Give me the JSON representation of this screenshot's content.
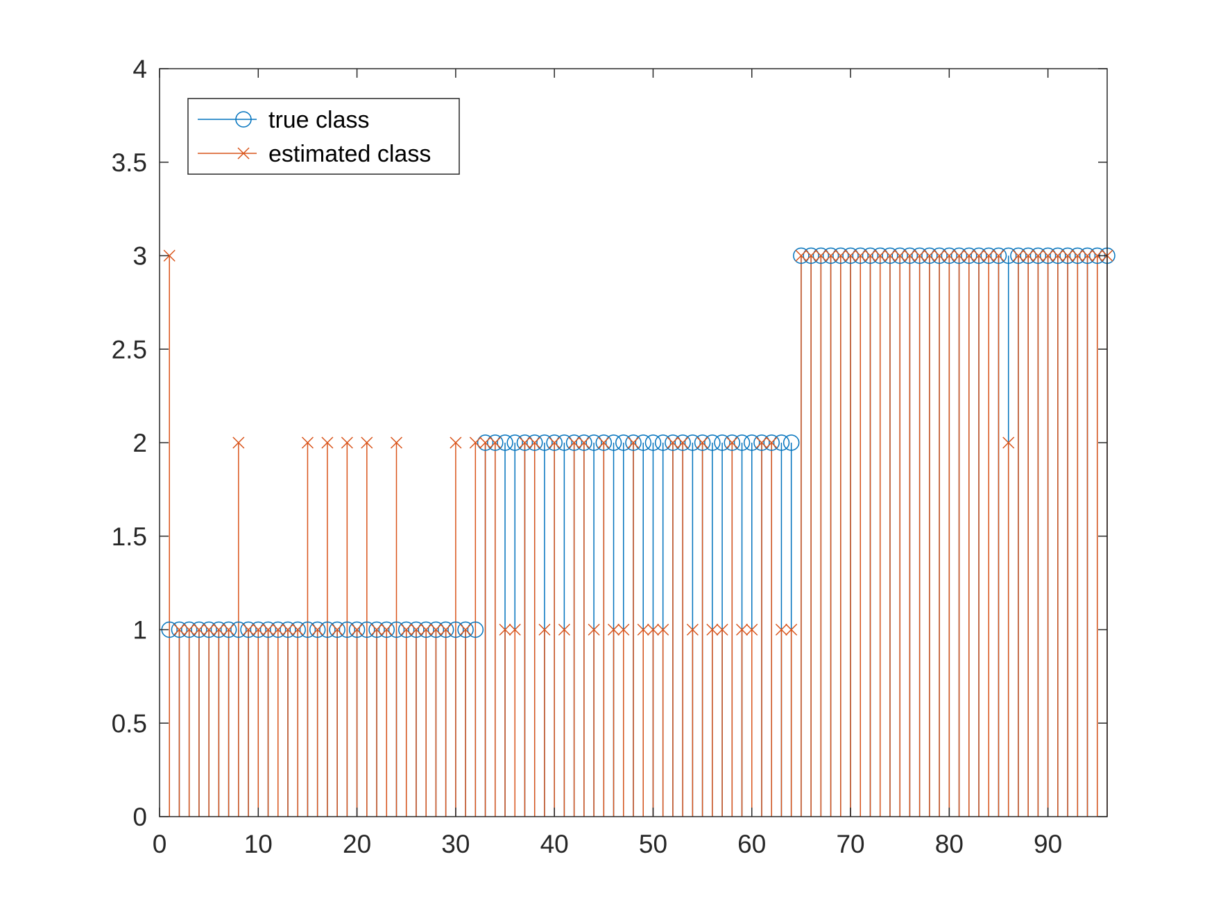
{
  "chart_data": {
    "type": "stem",
    "xlim": [
      0,
      96
    ],
    "ylim": [
      0,
      4
    ],
    "x_ticks": [
      0,
      10,
      20,
      30,
      40,
      50,
      60,
      70,
      80,
      90
    ],
    "x_tick_labels": [
      "0",
      "10",
      "20",
      "30",
      "40",
      "50",
      "60",
      "70",
      "80",
      "90"
    ],
    "y_ticks": [
      0,
      0.5,
      1,
      1.5,
      2,
      2.5,
      3,
      3.5,
      4
    ],
    "y_tick_labels": [
      "0",
      "0.5",
      "1",
      "1.5",
      "2",
      "2.5",
      "3",
      "3.5",
      "4"
    ],
    "grid": false,
    "legend_position": "top-left",
    "series": [
      {
        "name": "true class",
        "color": "#0072BD",
        "marker": "circle",
        "x": [
          1,
          2,
          3,
          4,
          5,
          6,
          7,
          8,
          9,
          10,
          11,
          12,
          13,
          14,
          15,
          16,
          17,
          18,
          19,
          20,
          21,
          22,
          23,
          24,
          25,
          26,
          27,
          28,
          29,
          30,
          31,
          32,
          33,
          34,
          35,
          36,
          37,
          38,
          39,
          40,
          41,
          42,
          43,
          44,
          45,
          46,
          47,
          48,
          49,
          50,
          51,
          52,
          53,
          54,
          55,
          56,
          57,
          58,
          59,
          60,
          61,
          62,
          63,
          64,
          65,
          66,
          67,
          68,
          69,
          70,
          71,
          72,
          73,
          74,
          75,
          76,
          77,
          78,
          79,
          80,
          81,
          82,
          83,
          84,
          85,
          86,
          87,
          88,
          89,
          90,
          91,
          92,
          93,
          94,
          95,
          96
        ],
        "values": [
          1,
          1,
          1,
          1,
          1,
          1,
          1,
          1,
          1,
          1,
          1,
          1,
          1,
          1,
          1,
          1,
          1,
          1,
          1,
          1,
          1,
          1,
          1,
          1,
          1,
          1,
          1,
          1,
          1,
          1,
          1,
          1,
          2,
          2,
          2,
          2,
          2,
          2,
          2,
          2,
          2,
          2,
          2,
          2,
          2,
          2,
          2,
          2,
          2,
          2,
          2,
          2,
          2,
          2,
          2,
          2,
          2,
          2,
          2,
          2,
          2,
          2,
          2,
          2,
          3,
          3,
          3,
          3,
          3,
          3,
          3,
          3,
          3,
          3,
          3,
          3,
          3,
          3,
          3,
          3,
          3,
          3,
          3,
          3,
          3,
          3,
          3,
          3,
          3,
          3,
          3,
          3,
          3,
          3,
          3,
          3
        ]
      },
      {
        "name": "estimated class",
        "color": "#D95319",
        "marker": "x",
        "x": [
          1,
          2,
          3,
          4,
          5,
          6,
          7,
          8,
          9,
          10,
          11,
          12,
          13,
          14,
          15,
          16,
          17,
          18,
          19,
          20,
          21,
          22,
          23,
          24,
          25,
          26,
          27,
          28,
          29,
          30,
          31,
          32,
          33,
          34,
          35,
          36,
          37,
          38,
          39,
          40,
          41,
          42,
          43,
          44,
          45,
          46,
          47,
          48,
          49,
          50,
          51,
          52,
          53,
          54,
          55,
          56,
          57,
          58,
          59,
          60,
          61,
          62,
          63,
          64,
          65,
          66,
          67,
          68,
          69,
          70,
          71,
          72,
          73,
          74,
          75,
          76,
          77,
          78,
          79,
          80,
          81,
          82,
          83,
          84,
          85,
          86,
          87,
          88,
          89,
          90,
          91,
          92,
          93,
          94,
          95,
          96
        ],
        "values": [
          3,
          1,
          1,
          1,
          1,
          1,
          1,
          2,
          1,
          1,
          1,
          1,
          1,
          1,
          2,
          1,
          2,
          1,
          2,
          1,
          2,
          1,
          1,
          2,
          1,
          1,
          1,
          1,
          1,
          2,
          1,
          2,
          2,
          2,
          1,
          1,
          2,
          2,
          1,
          2,
          1,
          2,
          2,
          1,
          2,
          1,
          1,
          2,
          1,
          1,
          1,
          2,
          2,
          1,
          2,
          1,
          1,
          2,
          1,
          1,
          2,
          2,
          1,
          1,
          3,
          3,
          3,
          3,
          3,
          3,
          3,
          3,
          3,
          3,
          3,
          3,
          3,
          3,
          3,
          3,
          3,
          3,
          3,
          3,
          3,
          2,
          3,
          3,
          3,
          3,
          3,
          3,
          3,
          3,
          3,
          3
        ]
      }
    ]
  }
}
